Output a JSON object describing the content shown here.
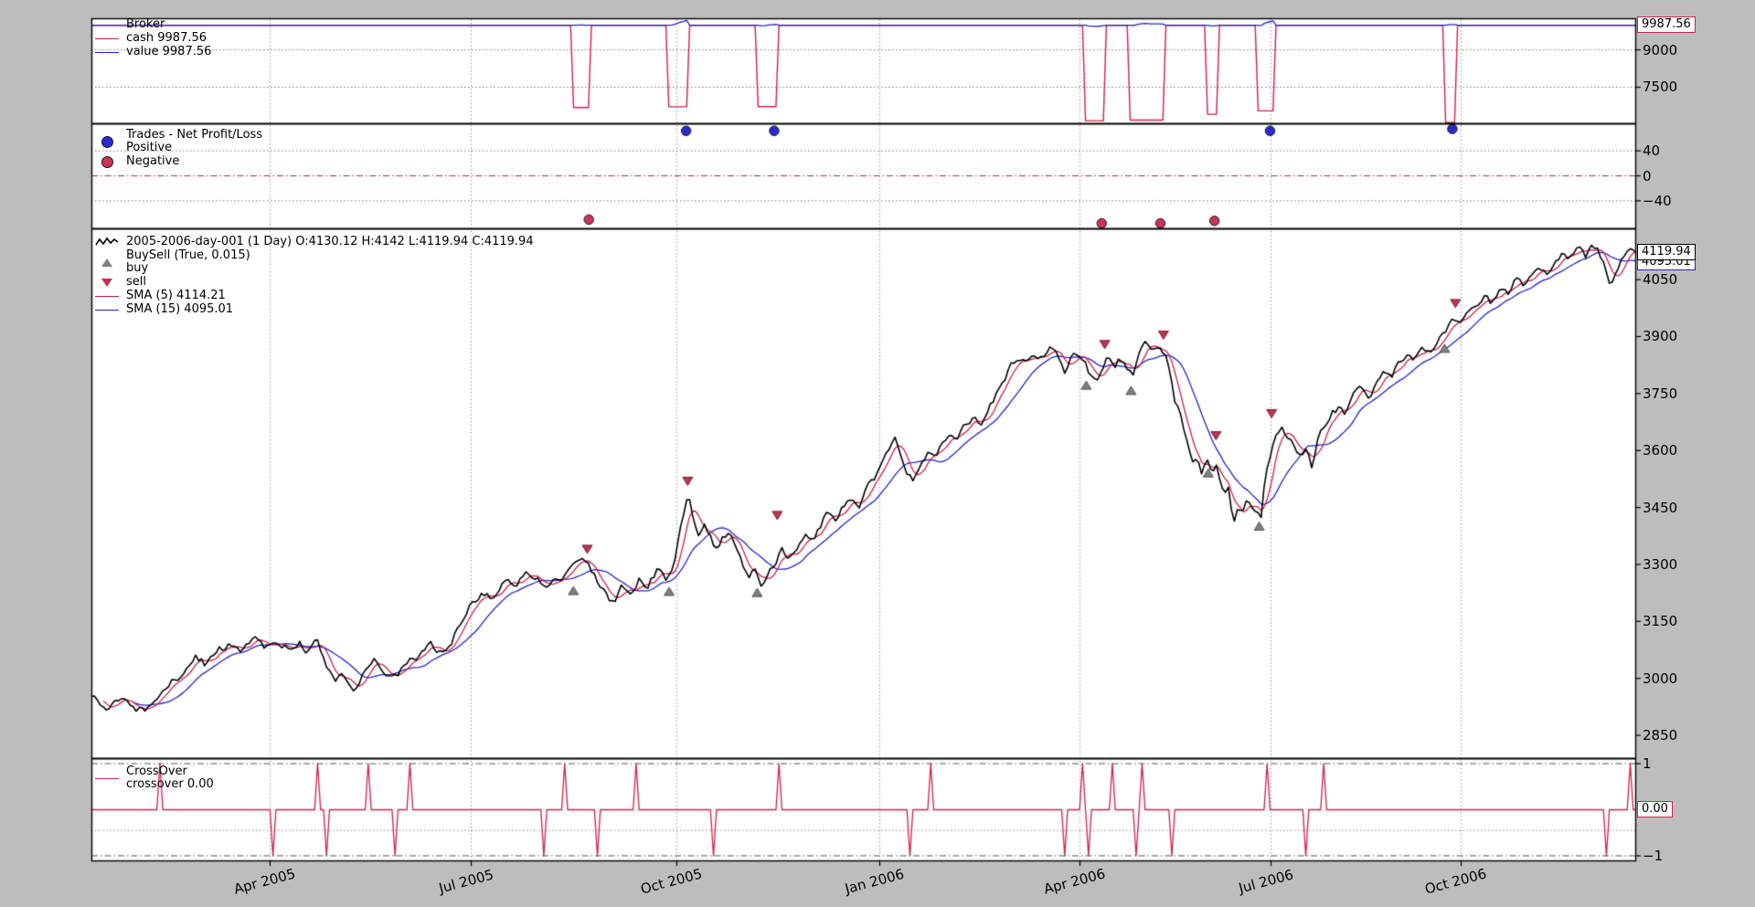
{
  "chart_data": {
    "type": "line",
    "colors": {
      "red": "#d0204c",
      "blue": "#2424cc",
      "black": "#000000",
      "buy_marker": "#7f7f7f",
      "sell_marker": "#bd3550",
      "pos_dot": "#2a2ad0",
      "neg_dot": "#cc3359",
      "grid": "#999999",
      "grid_dark": "#555555",
      "grid_red": "#8a3344",
      "figure_bg": "#bdbdbd",
      "panel_bg": "#ffffff"
    },
    "xticks": [
      {
        "f": 0.1154,
        "label": "Apr 2005"
      },
      {
        "f": 0.2456,
        "label": "Jul 2005"
      },
      {
        "f": 0.3787,
        "label": "Oct 2005"
      },
      {
        "f": 0.5101,
        "label": "Jan 2006"
      },
      {
        "f": 0.6396,
        "label": "Apr 2006"
      },
      {
        "f": 0.7633,
        "label": "Jul 2006"
      },
      {
        "f": 0.8864,
        "label": "Oct 2006"
      }
    ],
    "broker": {
      "title": "Broker",
      "cash_label": "cash 9987.56",
      "value_label": "value 9987.56",
      "base": 9987.56,
      "tag": "9987.56",
      "ylim": [
        6050,
        10270
      ],
      "yticks": [
        {
          "v": 9000,
          "label": "9000"
        },
        {
          "v": 7500,
          "label": "7500"
        }
      ],
      "positions": [
        [
          0.312,
          0.321
        ],
        [
          0.374,
          0.386
        ],
        [
          0.431,
          0.444
        ],
        [
          0.644,
          0.656
        ],
        [
          0.673,
          0.694
        ],
        [
          0.723,
          0.728
        ],
        [
          0.756,
          0.764
        ],
        [
          0.876,
          0.883
        ]
      ]
    },
    "trades": {
      "title": "Trades - Net Profit/Loss",
      "positive_label": "Positive",
      "negative_label": "Negative",
      "ylim": [
        -84,
        84
      ],
      "yticks": [
        {
          "v": 40,
          "label": "40"
        },
        {
          "v": 0,
          "label": "0"
        },
        {
          "v": -40,
          "label": "−40"
        }
      ],
      "positive": [
        [
          0.385,
          72
        ],
        [
          0.442,
          72
        ],
        [
          0.763,
          72
        ],
        [
          0.881,
          75
        ]
      ],
      "negative": [
        [
          0.322,
          -70
        ],
        [
          0.654,
          -76
        ],
        [
          0.692,
          -76
        ],
        [
          0.727,
          -72
        ]
      ]
    },
    "price": {
      "title": "2005-2006-day-001 (1 Day) O:4130.12 H:4142 L:4119.94 C:4119.94",
      "buysell_label": "BuySell (True, 0.015)",
      "buy_label": "buy",
      "sell_label": "sell",
      "sma5_label": "SMA (5) 4114.21",
      "sma15_label": "SMA (15) 4095.01",
      "close_tag": "4119.94",
      "sma15_tag": "4095.01",
      "sma5_value": 4114.21,
      "sma15_value": 4095.01,
      "close_value": 4119.94,
      "sma_periods": [
        5,
        15
      ],
      "ylim": [
        2790,
        4185
      ],
      "yticks": [
        {
          "v": 4050,
          "label": "4050"
        },
        {
          "v": 3900,
          "label": "3900"
        },
        {
          "v": 3750,
          "label": "3750"
        },
        {
          "v": 3600,
          "label": "3600"
        },
        {
          "v": 3450,
          "label": "3450"
        },
        {
          "v": 3300,
          "label": "3300"
        },
        {
          "v": 3150,
          "label": "3150"
        },
        {
          "v": 3000,
          "label": "3000"
        },
        {
          "v": 2850,
          "label": "2850"
        }
      ],
      "buys": [
        [
          0.312,
          3230
        ],
        [
          0.374,
          3228
        ],
        [
          0.431,
          3225
        ],
        [
          0.644,
          3771
        ],
        [
          0.673,
          3757
        ],
        [
          0.723,
          3540
        ],
        [
          0.756,
          3400
        ],
        [
          0.876,
          3868
        ]
      ],
      "sells": [
        [
          0.321,
          3341
        ],
        [
          0.386,
          3520
        ],
        [
          0.444,
          3430
        ],
        [
          0.656,
          3880
        ],
        [
          0.694,
          3905
        ],
        [
          0.728,
          3640
        ],
        [
          0.764,
          3698
        ],
        [
          0.883,
          3988
        ]
      ],
      "keypoints": [
        [
          0.0,
          2958
        ],
        [
          0.006,
          2930
        ],
        [
          0.01,
          2918
        ],
        [
          0.016,
          2948
        ],
        [
          0.022,
          2955
        ],
        [
          0.028,
          2920
        ],
        [
          0.035,
          2906
        ],
        [
          0.042,
          2942
        ],
        [
          0.05,
          2980
        ],
        [
          0.06,
          3022
        ],
        [
          0.068,
          3055
        ],
        [
          0.074,
          3038
        ],
        [
          0.082,
          3072
        ],
        [
          0.09,
          3092
        ],
        [
          0.096,
          3068
        ],
        [
          0.104,
          3108
        ],
        [
          0.112,
          3085
        ],
        [
          0.12,
          3102
        ],
        [
          0.127,
          3078
        ],
        [
          0.134,
          3098
        ],
        [
          0.14,
          3075
        ],
        [
          0.146,
          3095
        ],
        [
          0.152,
          3040
        ],
        [
          0.158,
          2992
        ],
        [
          0.163,
          3015
        ],
        [
          0.17,
          2972
        ],
        [
          0.177,
          3018
        ],
        [
          0.184,
          3045
        ],
        [
          0.19,
          3022
        ],
        [
          0.196,
          3005
        ],
        [
          0.203,
          3032
        ],
        [
          0.212,
          3062
        ],
        [
          0.22,
          3085
        ],
        [
          0.228,
          3068
        ],
        [
          0.236,
          3120
        ],
        [
          0.246,
          3195
        ],
        [
          0.252,
          3228
        ],
        [
          0.258,
          3212
        ],
        [
          0.264,
          3242
        ],
        [
          0.27,
          3262
        ],
        [
          0.276,
          3244
        ],
        [
          0.282,
          3288
        ],
        [
          0.288,
          3266
        ],
        [
          0.295,
          3238
        ],
        [
          0.302,
          3258
        ],
        [
          0.308,
          3278
        ],
        [
          0.314,
          3295
        ],
        [
          0.319,
          3310
        ],
        [
          0.324,
          3282
        ],
        [
          0.329,
          3248
        ],
        [
          0.334,
          3222
        ],
        [
          0.338,
          3196
        ],
        [
          0.343,
          3238
        ],
        [
          0.348,
          3215
        ],
        [
          0.354,
          3262
        ],
        [
          0.36,
          3246
        ],
        [
          0.366,
          3282
        ],
        [
          0.372,
          3264
        ],
        [
          0.377,
          3310
        ],
        [
          0.381,
          3395
        ],
        [
          0.386,
          3490
        ],
        [
          0.39,
          3420
        ],
        [
          0.393,
          3368
        ],
        [
          0.397,
          3405
        ],
        [
          0.401,
          3372
        ],
        [
          0.405,
          3335
        ],
        [
          0.409,
          3368
        ],
        [
          0.413,
          3390
        ],
        [
          0.418,
          3345
        ],
        [
          0.422,
          3300
        ],
        [
          0.426,
          3268
        ],
        [
          0.43,
          3290
        ],
        [
          0.434,
          3238
        ],
        [
          0.438,
          3282
        ],
        [
          0.442,
          3308
        ],
        [
          0.447,
          3338
        ],
        [
          0.452,
          3320
        ],
        [
          0.457,
          3355
        ],
        [
          0.462,
          3388
        ],
        [
          0.467,
          3372
        ],
        [
          0.472,
          3408
        ],
        [
          0.477,
          3440
        ],
        [
          0.482,
          3424
        ],
        [
          0.487,
          3460
        ],
        [
          0.492,
          3482
        ],
        [
          0.497,
          3464
        ],
        [
          0.502,
          3500
        ],
        [
          0.506,
          3522
        ],
        [
          0.51,
          3550
        ],
        [
          0.513,
          3588
        ],
        [
          0.517,
          3615
        ],
        [
          0.52,
          3632
        ],
        [
          0.524,
          3590
        ],
        [
          0.528,
          3550
        ],
        [
          0.532,
          3525
        ],
        [
          0.537,
          3568
        ],
        [
          0.541,
          3602
        ],
        [
          0.546,
          3582
        ],
        [
          0.551,
          3625
        ],
        [
          0.556,
          3648
        ],
        [
          0.561,
          3628
        ],
        [
          0.566,
          3670
        ],
        [
          0.571,
          3692
        ],
        [
          0.576,
          3675
        ],
        [
          0.581,
          3715
        ],
        [
          0.586,
          3750
        ],
        [
          0.591,
          3792
        ],
        [
          0.596,
          3825
        ],
        [
          0.601,
          3848
        ],
        [
          0.606,
          3822
        ],
        [
          0.611,
          3855
        ],
        [
          0.616,
          3838
        ],
        [
          0.621,
          3865
        ],
        [
          0.626,
          3842
        ],
        [
          0.63,
          3812
        ],
        [
          0.634,
          3845
        ],
        [
          0.638,
          3860
        ],
        [
          0.642,
          3838
        ],
        [
          0.646,
          3802
        ],
        [
          0.65,
          3775
        ],
        [
          0.654,
          3825
        ],
        [
          0.658,
          3852
        ],
        [
          0.662,
          3818
        ],
        [
          0.666,
          3845
        ],
        [
          0.67,
          3815
        ],
        [
          0.674,
          3798
        ],
        [
          0.678,
          3850
        ],
        [
          0.682,
          3875
        ],
        [
          0.686,
          3852
        ],
        [
          0.69,
          3878
        ],
        [
          0.694,
          3862
        ],
        [
          0.698,
          3820
        ],
        [
          0.701,
          3740
        ],
        [
          0.704,
          3722
        ],
        [
          0.707,
          3650
        ],
        [
          0.71,
          3615
        ],
        [
          0.713,
          3572
        ],
        [
          0.716,
          3598
        ],
        [
          0.719,
          3540
        ],
        [
          0.722,
          3595
        ],
        [
          0.725,
          3548
        ],
        [
          0.728,
          3565
        ],
        [
          0.731,
          3505
        ],
        [
          0.734,
          3478
        ],
        [
          0.736,
          3500
        ],
        [
          0.739,
          3402
        ],
        [
          0.742,
          3455
        ],
        [
          0.745,
          3440
        ],
        [
          0.748,
          3485
        ],
        [
          0.751,
          3458
        ],
        [
          0.754,
          3448
        ],
        [
          0.757,
          3422
        ],
        [
          0.76,
          3535
        ],
        [
          0.763,
          3588
        ],
        [
          0.766,
          3650
        ],
        [
          0.77,
          3658
        ],
        [
          0.774,
          3645
        ],
        [
          0.778,
          3620
        ],
        [
          0.782,
          3578
        ],
        [
          0.786,
          3605
        ],
        [
          0.79,
          3558
        ],
        [
          0.794,
          3628
        ],
        [
          0.798,
          3660
        ],
        [
          0.802,
          3695
        ],
        [
          0.807,
          3712
        ],
        [
          0.812,
          3692
        ],
        [
          0.817,
          3740
        ],
        [
          0.822,
          3762
        ],
        [
          0.827,
          3745
        ],
        [
          0.832,
          3785
        ],
        [
          0.837,
          3810
        ],
        [
          0.842,
          3792
        ],
        [
          0.847,
          3832
        ],
        [
          0.852,
          3858
        ],
        [
          0.857,
          3840
        ],
        [
          0.862,
          3872
        ],
        [
          0.867,
          3855
        ],
        [
          0.872,
          3890
        ],
        [
          0.876,
          3912
        ],
        [
          0.881,
          3945
        ],
        [
          0.886,
          3922
        ],
        [
          0.891,
          3955
        ],
        [
          0.897,
          3980
        ],
        [
          0.902,
          4008
        ],
        [
          0.907,
          3990
        ],
        [
          0.912,
          4025
        ],
        [
          0.917,
          4005
        ],
        [
          0.922,
          4045
        ],
        [
          0.927,
          4025
        ],
        [
          0.932,
          4060
        ],
        [
          0.937,
          4080
        ],
        [
          0.942,
          4060
        ],
        [
          0.947,
          4095
        ],
        [
          0.952,
          4120
        ],
        [
          0.957,
          4100
        ],
        [
          0.962,
          4130
        ],
        [
          0.967,
          4110
        ],
        [
          0.971,
          4140
        ],
        [
          0.975,
          4142
        ],
        [
          0.979,
          4090
        ],
        [
          0.983,
          4030
        ],
        [
          0.987,
          4070
        ],
        [
          0.991,
          4110
        ],
        [
          0.995,
          4138
        ],
        [
          1.0,
          4120
        ]
      ]
    },
    "crossover": {
      "title": "CrossOver",
      "sub": "crossover 0.00",
      "tag": "0.00",
      "ylim": [
        -1.12,
        1.12
      ],
      "yticks": [
        {
          "v": 1,
          "label": "1"
        },
        {
          "v": -1,
          "label": "−1"
        }
      ]
    }
  }
}
